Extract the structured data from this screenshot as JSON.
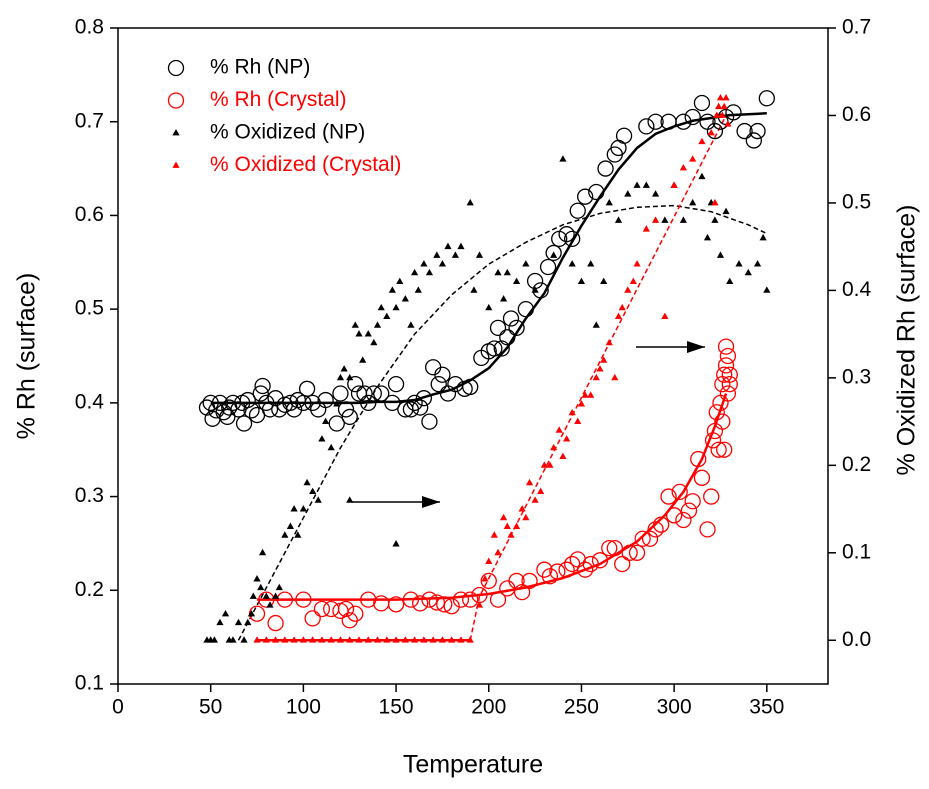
{
  "chart_data": {
    "type": "scatter",
    "x_label": "Temperature",
    "y_label": "% Rh (surface)",
    "y2_label": "% Oxidized Rh (surface)",
    "xlim": [
      0,
      383
    ],
    "xticks": [
      0,
      50,
      100,
      150,
      200,
      250,
      300,
      350
    ],
    "ylim": [
      0.1,
      0.8
    ],
    "yticks": [
      0.1,
      0.2,
      0.3,
      0.4,
      0.5,
      0.6,
      0.7,
      0.8
    ],
    "y2lim": [
      -0.05,
      0.7
    ],
    "y2ticks": [
      {
        "value": 0,
        "label": "0.0"
      },
      0.1,
      0.2,
      0.3,
      0.4,
      0.5,
      0.6,
      0.7
    ],
    "legend": "upper left",
    "grid": false,
    "series": [
      {
        "name": "% Rh (NP)",
        "color": "#000000",
        "marker": "circle",
        "x": [
          48,
          50,
          51,
          53,
          55,
          57,
          59,
          60,
          62,
          65,
          67,
          68,
          70,
          72,
          75,
          77,
          78,
          80,
          82,
          85,
          87,
          90,
          93,
          95,
          97,
          100,
          102,
          105,
          108,
          112,
          118,
          120,
          123,
          125,
          128,
          130,
          133,
          135,
          138,
          142,
          148,
          150,
          155,
          158,
          160,
          163,
          165,
          168,
          170,
          173,
          175,
          178,
          182,
          187,
          190,
          196,
          200,
          203,
          205,
          207,
          210,
          212,
          215,
          220,
          225,
          228,
          232,
          235,
          238,
          242,
          245,
          248,
          252,
          258,
          263,
          268,
          270,
          273,
          285,
          290,
          297,
          305,
          310,
          315,
          318,
          322,
          325,
          328,
          332,
          338,
          343,
          345,
          350
        ],
        "values": [
          0.395,
          0.4,
          0.383,
          0.392,
          0.4,
          0.39,
          0.385,
          0.395,
          0.4,
          0.393,
          0.4,
          0.378,
          0.403,
          0.392,
          0.387,
          0.41,
          0.418,
          0.4,
          0.393,
          0.405,
          0.393,
          0.398,
          0.4,
          0.393,
          0.403,
          0.4,
          0.415,
          0.4,
          0.393,
          0.403,
          0.378,
          0.41,
          0.393,
          0.385,
          0.42,
          0.41,
          0.41,
          0.4,
          0.41,
          0.41,
          0.4,
          0.42,
          0.393,
          0.393,
          0.4,
          0.395,
          0.405,
          0.38,
          0.438,
          0.42,
          0.43,
          0.41,
          0.42,
          0.415,
          0.417,
          0.448,
          0.455,
          0.458,
          0.48,
          0.458,
          0.47,
          0.49,
          0.48,
          0.5,
          0.53,
          0.52,
          0.545,
          0.56,
          0.575,
          0.58,
          0.575,
          0.605,
          0.62,
          0.625,
          0.65,
          0.665,
          0.672,
          0.685,
          0.695,
          0.7,
          0.7,
          0.7,
          0.705,
          0.72,
          0.7,
          0.69,
          0.7,
          0.705,
          0.71,
          0.69,
          0.68,
          0.69,
          0.725
        ]
      },
      {
        "name": "% Rh (Crystal)",
        "color": "#ff0000",
        "marker": "circle",
        "x": [
          75,
          80,
          85,
          90,
          100,
          105,
          110,
          115,
          120,
          123,
          125,
          128,
          135,
          142,
          150,
          158,
          163,
          168,
          172,
          176,
          180,
          185,
          190,
          195,
          200,
          205,
          210,
          215,
          218,
          222,
          230,
          233,
          237,
          242,
          245,
          248,
          252,
          255,
          260,
          265,
          268,
          272,
          276,
          280,
          283,
          287,
          290,
          293,
          297,
          300,
          303,
          305,
          308,
          310,
          313,
          315,
          318,
          320,
          321,
          322,
          323,
          324,
          325,
          326,
          326,
          327,
          327,
          328,
          328,
          329,
          329,
          330,
          330
        ],
        "values": [
          0.175,
          0.19,
          0.165,
          0.19,
          0.19,
          0.17,
          0.18,
          0.18,
          0.178,
          0.18,
          0.168,
          0.175,
          0.19,
          0.186,
          0.185,
          0.19,
          0.186,
          0.19,
          0.187,
          0.185,
          0.183,
          0.19,
          0.19,
          0.195,
          0.21,
          0.19,
          0.202,
          0.21,
          0.198,
          0.21,
          0.222,
          0.215,
          0.22,
          0.222,
          0.228,
          0.233,
          0.222,
          0.228,
          0.232,
          0.245,
          0.245,
          0.228,
          0.24,
          0.24,
          0.255,
          0.255,
          0.265,
          0.27,
          0.3,
          0.28,
          0.305,
          0.275,
          0.285,
          0.295,
          0.34,
          0.32,
          0.265,
          0.3,
          0.36,
          0.37,
          0.39,
          0.35,
          0.4,
          0.38,
          0.42,
          0.43,
          0.35,
          0.44,
          0.46,
          0.45,
          0.41,
          0.42,
          0.43
        ]
      },
      {
        "name": "% Oxidized (NP)",
        "color": "#000000",
        "marker": "triangle",
        "axis": "y2",
        "x": [
          48,
          50,
          52,
          55,
          58,
          60,
          62,
          65,
          68,
          70,
          72,
          73,
          75,
          77,
          78,
          80,
          82,
          85,
          87,
          90,
          93,
          95,
          97,
          100,
          102,
          105,
          108,
          110,
          112,
          115,
          118,
          120,
          122,
          125,
          125,
          128,
          130,
          132,
          135,
          138,
          140,
          142,
          145,
          148,
          150,
          150,
          152,
          155,
          158,
          160,
          162,
          165,
          168,
          172,
          175,
          178,
          182,
          185,
          190,
          192,
          195,
          200,
          205,
          208,
          210,
          215,
          220,
          225,
          235,
          240,
          245,
          250,
          255,
          258,
          262,
          265,
          270,
          275,
          280,
          285,
          290,
          295,
          300,
          305,
          310,
          315,
          318,
          320,
          322,
          325,
          328,
          330,
          335,
          340,
          345,
          348,
          350
        ],
        "values": [
          0.0,
          0.0,
          0.0,
          0.02,
          0.03,
          0.0,
          0.0,
          0.02,
          0.0,
          0.02,
          0.03,
          0.05,
          0.07,
          0.06,
          0.1,
          0.05,
          0.04,
          0.05,
          0.06,
          0.12,
          0.13,
          0.15,
          0.12,
          0.15,
          0.18,
          0.17,
          0.16,
          0.23,
          0.25,
          0.22,
          0.27,
          0.3,
          0.31,
          0.3,
          0.16,
          0.36,
          0.35,
          0.32,
          0.35,
          0.34,
          0.36,
          0.38,
          0.37,
          0.4,
          0.38,
          0.11,
          0.41,
          0.39,
          0.36,
          0.42,
          0.4,
          0.43,
          0.42,
          0.44,
          0.43,
          0.45,
          0.44,
          0.45,
          0.5,
          0.4,
          0.44,
          0.38,
          0.42,
          0.39,
          0.42,
          0.41,
          0.43,
          0.4,
          0.44,
          0.55,
          0.43,
          0.41,
          0.43,
          0.36,
          0.41,
          0.5,
          0.48,
          0.51,
          0.52,
          0.52,
          0.51,
          0.48,
          0.52,
          0.48,
          0.5,
          0.53,
          0.46,
          0.5,
          0.48,
          0.44,
          0.49,
          0.41,
          0.43,
          0.42,
          0.43,
          0.46,
          0.4
        ]
      },
      {
        "name": "% Oxidized (Crystal)",
        "color": "#ff0000",
        "marker": "triangle",
        "axis": "y2",
        "x": [
          75,
          80,
          85,
          90,
          95,
          100,
          105,
          110,
          115,
          120,
          125,
          130,
          135,
          140,
          145,
          150,
          155,
          160,
          165,
          170,
          175,
          180,
          185,
          190,
          195,
          198,
          200,
          203,
          205,
          208,
          210,
          212,
          215,
          218,
          220,
          222,
          225,
          228,
          230,
          233,
          235,
          238,
          240,
          242,
          245,
          248,
          250,
          252,
          255,
          258,
          260,
          262,
          265,
          268,
          270,
          272,
          275,
          278,
          280,
          285,
          290,
          295,
          300,
          305,
          310,
          315,
          320,
          322,
          323,
          324,
          325,
          326,
          327,
          328,
          329
        ],
        "values": [
          0,
          0,
          0,
          0,
          0,
          0,
          0,
          0,
          0,
          0,
          0,
          0,
          0,
          0,
          0,
          0,
          0,
          0,
          0,
          0,
          0,
          0,
          0,
          0,
          0.04,
          0.07,
          0.09,
          0.12,
          0.1,
          0.14,
          0.13,
          0.12,
          0.13,
          0.15,
          0.14,
          0.18,
          0.16,
          0.17,
          0.2,
          0.2,
          0.22,
          0.24,
          0.21,
          0.23,
          0.26,
          0.25,
          0.27,
          0.28,
          0.28,
          0.3,
          0.31,
          0.32,
          0.34,
          0.3,
          0.37,
          0.38,
          0.4,
          0.41,
          0.43,
          0.47,
          0.48,
          0.37,
          0.52,
          0.54,
          0.55,
          0.57,
          0.58,
          0.5,
          0.6,
          0.61,
          0.62,
          0.6,
          0.61,
          0.62,
          0.59
        ]
      }
    ],
    "fits": [
      {
        "color": "#000000",
        "dashed": false,
        "x": [
          50,
          60,
          70,
          80,
          90,
          100,
          110,
          120,
          130,
          140,
          150,
          160,
          170,
          180,
          190,
          200,
          210,
          220,
          230,
          240,
          250,
          260,
          270,
          280,
          290,
          300,
          310,
          320,
          330,
          340,
          350
        ],
        "values": [
          0.4,
          0.4,
          0.4,
          0.4,
          0.4,
          0.4,
          0.4,
          0.4,
          0.4,
          0.401,
          0.401,
          0.403,
          0.409,
          0.414,
          0.424,
          0.437,
          0.459,
          0.49,
          0.517,
          0.555,
          0.589,
          0.62,
          0.649,
          0.672,
          0.687,
          0.695,
          0.701,
          0.704,
          0.707,
          0.708,
          0.709
        ]
      },
      {
        "color": "#ff0000",
        "dashed": false,
        "x": [
          75,
          100,
          150,
          180,
          200,
          220,
          240,
          260,
          280,
          295,
          305,
          315,
          322,
          328
        ],
        "values": [
          0.19,
          0.19,
          0.19,
          0.192,
          0.196,
          0.203,
          0.213,
          0.228,
          0.252,
          0.28,
          0.305,
          0.34,
          0.375,
          0.41
        ]
      },
      {
        "color": "#000000",
        "dashed": true,
        "axis": "y2",
        "x": [
          65,
          80,
          100,
          120,
          140,
          160,
          180,
          200,
          220,
          240,
          260,
          280,
          300,
          320,
          340,
          350
        ],
        "values": [
          0.0,
          0.06,
          0.14,
          0.22,
          0.29,
          0.35,
          0.395,
          0.43,
          0.455,
          0.475,
          0.488,
          0.495,
          0.497,
          0.49,
          0.475,
          0.465
        ]
      },
      {
        "color": "#ff0000",
        "dashed": true,
        "axis": "y2",
        "x": [
          190,
          195,
          328
        ],
        "values": [
          0.0,
          0.05,
          0.6
        ]
      },
      {
        "color": "#ff0000",
        "dashed": false,
        "axis": "y2",
        "x": [
          75,
          190
        ],
        "values": [
          0,
          0
        ]
      }
    ]
  }
}
